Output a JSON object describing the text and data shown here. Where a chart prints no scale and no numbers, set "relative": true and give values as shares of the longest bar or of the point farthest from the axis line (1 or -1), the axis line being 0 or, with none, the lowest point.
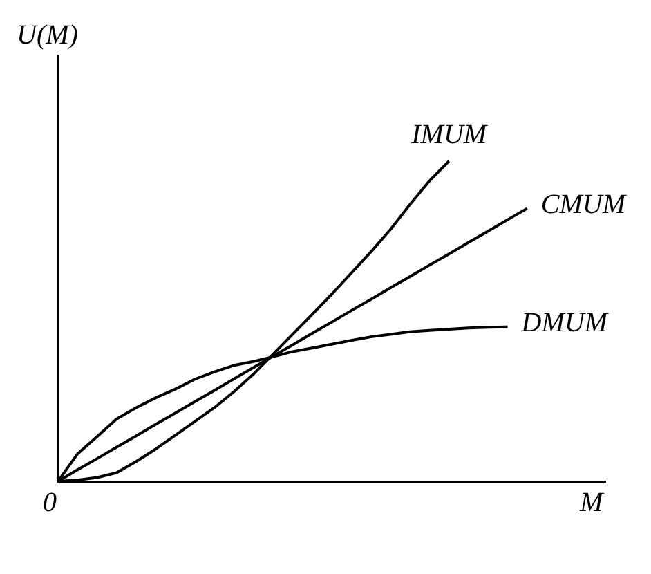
{
  "chart_data": {
    "type": "line",
    "relative": true,
    "xlabel": "M",
    "ylabel": "U(M)",
    "annotations": [
      "0"
    ],
    "legend": false,
    "grid": false,
    "marker": "none",
    "line_style": "solid",
    "categories": [
      null,
      null,
      null,
      null,
      null,
      null,
      null,
      null,
      null,
      null,
      null,
      null,
      null,
      null,
      null,
      null,
      null,
      null,
      null,
      null,
      null,
      null,
      null,
      null,
      null,
      null,
      null,
      null,
      null
    ],
    "series": [
      {
        "name": "IMUM",
        "color": "#000000",
        "values": [
          0,
          0.004,
          0.012,
          0.027,
          0.062,
          0.101,
          0.144,
          0.187,
          0.23,
          0.28,
          0.335,
          0.397,
          0.459,
          0.521,
          0.584,
          0.65,
          0.716,
          0.786,
          0.864,
          0.938,
          1,
          null,
          null,
          null,
          null,
          null,
          null,
          null,
          null
        ]
      },
      {
        "name": "CMUM",
        "color": "#000000",
        "values": [
          0,
          0.036,
          0.071,
          0.107,
          0.142,
          0.178,
          0.213,
          0.249,
          0.284,
          0.32,
          0.355,
          0.391,
          0.426,
          0.462,
          0.497,
          0.533,
          0.568,
          0.604,
          0.639,
          0.675,
          0.71,
          0.746,
          0.781,
          0.817,
          0.852,
          null,
          null,
          null,
          null
        ]
      },
      {
        "name": "DMUM",
        "color": "#000000",
        "values": [
          0,
          0.086,
          0.14,
          0.195,
          0.23,
          0.261,
          0.288,
          0.319,
          0.342,
          0.362,
          0.374,
          0.389,
          0.405,
          0.416,
          0.428,
          0.44,
          0.451,
          0.459,
          0.467,
          0.471,
          0.475,
          0.479,
          0.481,
          0.482,
          null,
          null,
          null,
          null,
          null
        ]
      }
    ]
  }
}
